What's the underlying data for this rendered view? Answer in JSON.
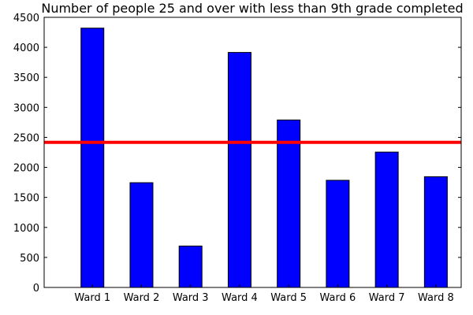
{
  "chart_data": {
    "type": "bar",
    "title": "Number of people 25 and over with less than 9th grade completed",
    "xlabel": "",
    "ylabel": "",
    "categories": [
      "Ward 1",
      "Ward 2",
      "Ward 3",
      "Ward 4",
      "Ward 5",
      "Ward 6",
      "Ward 7",
      "Ward 8"
    ],
    "values": [
      4320,
      1745,
      690,
      3915,
      2790,
      1785,
      2255,
      1845
    ],
    "ylim": [
      0,
      4500
    ],
    "yticks": [
      0,
      500,
      1000,
      1500,
      2000,
      2500,
      3000,
      3500,
      4000,
      4500
    ],
    "reference_line": 2418,
    "grid": false,
    "legend": "none",
    "colors": {
      "bar_fill": "#0000ff",
      "bar_edge": "#000000",
      "reference_line": "#ff0000"
    }
  }
}
